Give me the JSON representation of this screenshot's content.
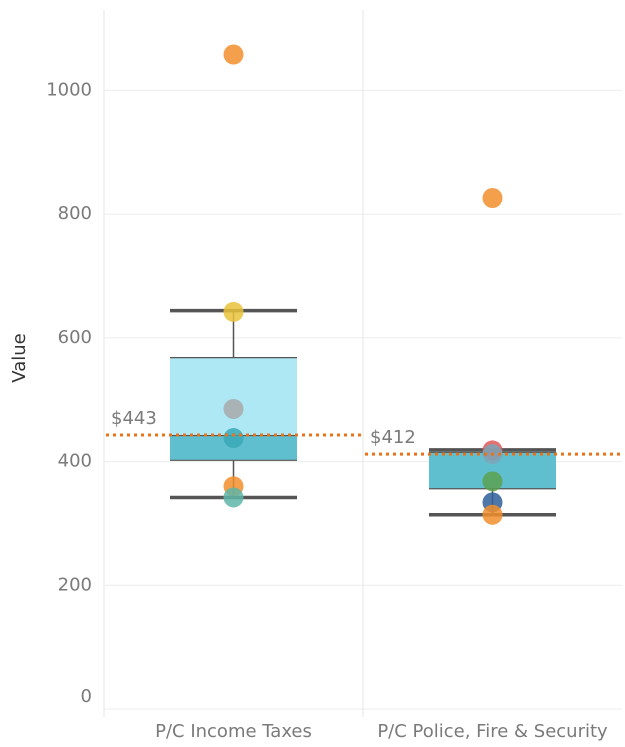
{
  "chart_data": {
    "type": "box",
    "y_label": "Value",
    "ylim": [
      0,
      1130
    ],
    "yticks": [
      0,
      200,
      400,
      600,
      800,
      1000
    ],
    "grid": true,
    "categories": [
      "P/C Income Taxes",
      "P/C Police, Fire & Security"
    ],
    "box_colors": {
      "upper": "#aee8f4",
      "lower": "#5fbfcf"
    },
    "mean_color": "#e8731a",
    "boxes": [
      {
        "whisker_low": 342,
        "q1": 402,
        "median": 442,
        "q3": 568,
        "whisker_high": 644,
        "mean": {
          "value": 443,
          "label": "$443"
        },
        "points": [
          {
            "value": 1058,
            "color": "#f28e2b"
          },
          {
            "value": 642,
            "color": "#e9c33a"
          },
          {
            "value": 485,
            "color": "#a8a8a8"
          },
          {
            "value": 438,
            "color": "#3aa8b8"
          },
          {
            "value": 360,
            "color": "#f28e2b"
          },
          {
            "value": 342,
            "color": "#5fb5a8"
          }
        ]
      },
      {
        "whisker_low": 314,
        "q1": 356,
        "median": 415,
        "q3": 419,
        "whisker_high": 419,
        "mean": {
          "value": 412,
          "label": "$412"
        },
        "points": [
          {
            "value": 826,
            "color": "#f28e2b"
          },
          {
            "value": 418,
            "color": "#e15759"
          },
          {
            "value": 412,
            "color": "#7aa6b8"
          },
          {
            "value": 368,
            "color": "#59a14f"
          },
          {
            "value": 334,
            "color": "#2f5f9a"
          },
          {
            "value": 314,
            "color": "#f28e2b"
          }
        ]
      }
    ]
  }
}
